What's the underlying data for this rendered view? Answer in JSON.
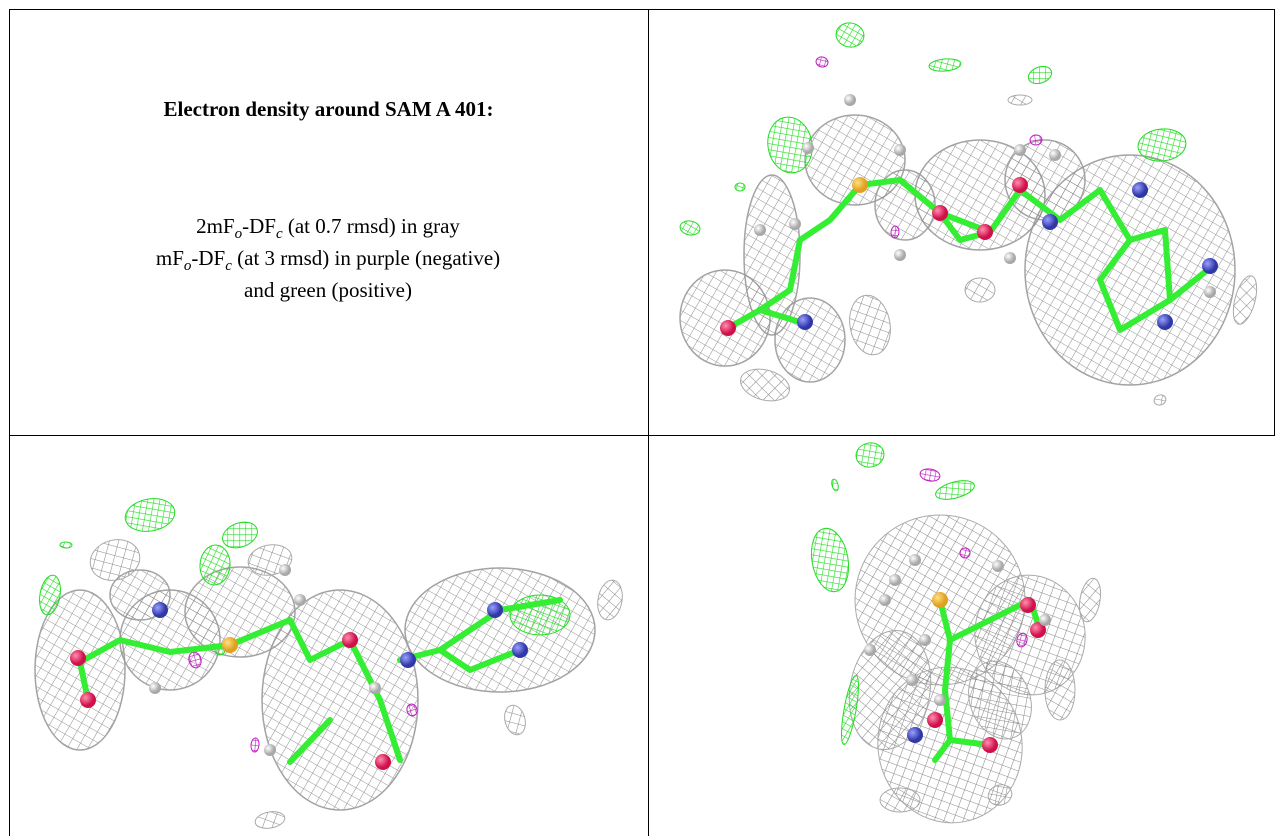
{
  "header": {
    "title": "Electron density around SAM A 401:"
  },
  "legend": {
    "lines": [
      [
        "2mF",
        "o",
        "-DF",
        "c",
        " (at 0.7 rmsd) in gray"
      ],
      [
        "mF",
        "o",
        "-DF",
        "c",
        " (at 3 rmsd) in purple (negative) and green (positive)"
      ]
    ]
  }
}
